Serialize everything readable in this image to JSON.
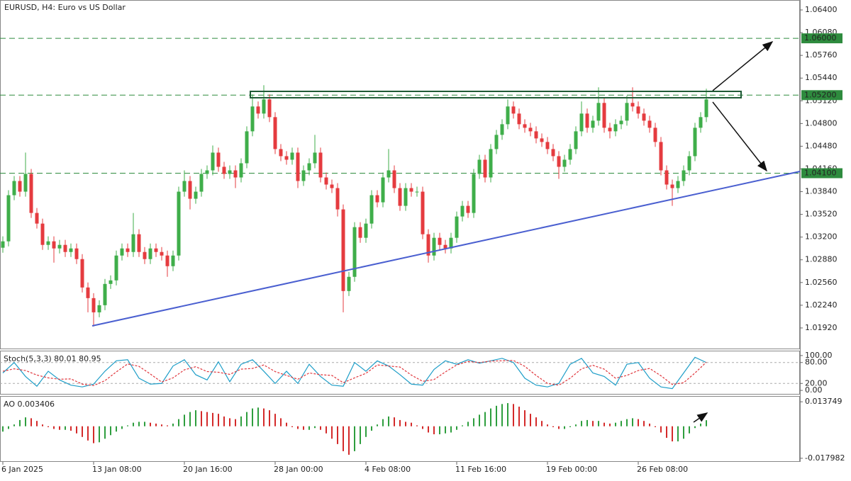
{
  "chart_data": [
    {
      "type": "candlestick",
      "title": "EURUSD, H4:  Euro vs US Dollar",
      "up_color": "#3fae4a",
      "down_color": "#e53b3f",
      "xlim": [
        -0.5,
        140.5
      ],
      "ylim": [
        1.0162,
        1.0654
      ],
      "yticks": [
        {
          "value": 1.064,
          "label": "1.06400"
        },
        {
          "value": 1.0608,
          "label": "1.06080"
        },
        {
          "value": 1.0576,
          "label": "1.05760"
        },
        {
          "value": 1.0544,
          "label": "1.05440"
        },
        {
          "value": 1.0512,
          "label": "1.05120"
        },
        {
          "value": 1.048,
          "label": "1.04800"
        },
        {
          "value": 1.0448,
          "label": "1.04480"
        },
        {
          "value": 1.0416,
          "label": "1.04160"
        },
        {
          "value": 1.0384,
          "label": "1.03840"
        },
        {
          "value": 1.0352,
          "label": "1.03520"
        },
        {
          "value": 1.032,
          "label": "1.03200"
        },
        {
          "value": 1.0288,
          "label": "1.02880"
        },
        {
          "value": 1.0256,
          "label": "1.02560"
        },
        {
          "value": 1.0224,
          "label": "1.02240"
        },
        {
          "value": 1.0192,
          "label": "1.01920"
        }
      ],
      "xticks": [
        {
          "value": 0,
          "label": "6 Jan 2025"
        },
        {
          "value": 16,
          "label": "13 Jan 08:00"
        },
        {
          "value": 32,
          "label": "20 Jan 16:00"
        },
        {
          "value": 48,
          "label": "28 Jan 00:00"
        },
        {
          "value": 64,
          "label": "4 Feb 08:00"
        },
        {
          "value": 80,
          "label": "11 Feb 16:00"
        },
        {
          "value": 96,
          "label": "19 Feb 00:00"
        },
        {
          "value": 112,
          "label": "26 Feb 08:00"
        }
      ],
      "levels": [
        {
          "value": 1.06,
          "label": "1.06000"
        },
        {
          "value": 1.052,
          "label": "1.05200"
        },
        {
          "value": 1.041,
          "label": "1.04100"
        }
      ],
      "level_color": "#2e8b3e",
      "open": [
        1.0305,
        1.0314,
        1.0379,
        1.0399,
        1.0384,
        1.0409,
        1.0354,
        1.0339,
        1.0309,
        1.0314,
        1.0304,
        1.0309,
        1.0299,
        1.0304,
        1.0289,
        1.0249,
        1.0234,
        1.0214,
        1.0224,
        1.0254,
        1.0259,
        1.0294,
        1.0304,
        1.0299,
        1.0324,
        1.0299,
        1.0289,
        1.0304,
        1.0299,
        1.0294,
        1.0279,
        1.0294,
        1.0384,
        1.0399,
        1.0374,
        1.0384,
        1.0409,
        1.0414,
        1.0439,
        1.0419,
        1.0409,
        1.0414,
        1.0404,
        1.0424,
        1.0469,
        1.0504,
        1.0494,
        1.0514,
        1.0489,
        1.0444,
        1.0434,
        1.0429,
        1.0439,
        1.0399,
        1.0414,
        1.0424,
        1.0439,
        1.0404,
        1.0394,
        1.0389,
        1.0359,
        1.0244,
        1.0264,
        1.0334,
        1.0319,
        1.0339,
        1.0379,
        1.0369,
        1.0404,
        1.0414,
        1.0389,
        1.0364,
        1.0389,
        1.0384,
        1.0384,
        1.0324,
        1.0294,
        1.0319,
        1.0309,
        1.0304,
        1.0319,
        1.0349,
        1.0364,
        1.0354,
        1.0409,
        1.0429,
        1.0404,
        1.0444,
        1.0464,
        1.0479,
        1.0504,
        1.0494,
        1.0479,
        1.0474,
        1.0469,
        1.0459,
        1.0454,
        1.0444,
        1.0434,
        1.0419,
        1.0429,
        1.0444,
        1.0469,
        1.0494,
        1.0474,
        1.0484,
        1.0509,
        1.0474,
        1.0469,
        1.0479,
        1.0484,
        1.0509,
        1.0504,
        1.0494,
        1.0484,
        1.0474,
        1.0454,
        1.0414,
        1.0394,
        1.0389,
        1.0399,
        1.0414,
        1.0434,
        1.0474,
        1.0489
      ],
      "high": [
        1.0321,
        1.0386,
        1.0406,
        1.0406,
        1.0439,
        1.0416,
        1.0361,
        1.0346,
        1.0321,
        1.0321,
        1.0316,
        1.0316,
        1.0311,
        1.0311,
        1.0296,
        1.0256,
        1.0241,
        1.0231,
        1.0261,
        1.0266,
        1.0301,
        1.0311,
        1.0311,
        1.0354,
        1.0331,
        1.0306,
        1.0311,
        1.0311,
        1.0306,
        1.0301,
        1.0301,
        1.0391,
        1.0414,
        1.0406,
        1.0391,
        1.0416,
        1.0421,
        1.0449,
        1.0446,
        1.0426,
        1.0421,
        1.0421,
        1.0431,
        1.0476,
        1.0521,
        1.0511,
        1.0534,
        1.0521,
        1.0496,
        1.0451,
        1.0441,
        1.0446,
        1.0446,
        1.0421,
        1.0431,
        1.0464,
        1.0446,
        1.0411,
        1.0401,
        1.0396,
        1.0366,
        1.0271,
        1.0341,
        1.0341,
        1.0346,
        1.0386,
        1.0386,
        1.0411,
        1.0444,
        1.0421,
        1.0396,
        1.0396,
        1.0396,
        1.0391,
        1.0391,
        1.0331,
        1.0326,
        1.0326,
        1.0316,
        1.0326,
        1.0356,
        1.0371,
        1.0371,
        1.0416,
        1.0436,
        1.0436,
        1.0451,
        1.0471,
        1.0486,
        1.0514,
        1.0511,
        1.0501,
        1.0486,
        1.0481,
        1.0476,
        1.0466,
        1.0461,
        1.0451,
        1.0441,
        1.0436,
        1.0451,
        1.0476,
        1.0511,
        1.0501,
        1.0491,
        1.0531,
        1.0516,
        1.0481,
        1.0486,
        1.0491,
        1.0519,
        1.0531,
        1.0511,
        1.0501,
        1.0491,
        1.0481,
        1.0461,
        1.0421,
        1.0401,
        1.0406,
        1.0421,
        1.0441,
        1.0481,
        1.0496,
        1.0529
      ],
      "low": [
        1.0298,
        1.0307,
        1.0372,
        1.0377,
        1.0377,
        1.0347,
        1.0332,
        1.0302,
        1.0302,
        1.0284,
        1.0297,
        1.0292,
        1.0292,
        1.0282,
        1.0242,
        1.0214,
        1.0194,
        1.0207,
        1.0217,
        1.0247,
        1.0252,
        1.0287,
        1.0292,
        1.0292,
        1.0292,
        1.0282,
        1.0282,
        1.0292,
        1.0287,
        1.0264,
        1.0272,
        1.0287,
        1.0377,
        1.0359,
        1.0367,
        1.0377,
        1.0402,
        1.0407,
        1.0412,
        1.0402,
        1.0402,
        1.0389,
        1.0397,
        1.0417,
        1.0462,
        1.0487,
        1.0487,
        1.0482,
        1.0437,
        1.0427,
        1.0422,
        1.0422,
        1.0389,
        1.0392,
        1.0407,
        1.0417,
        1.0397,
        1.0387,
        1.0382,
        1.0349,
        1.0214,
        1.0237,
        1.0257,
        1.0312,
        1.0312,
        1.0332,
        1.0362,
        1.0362,
        1.0397,
        1.0382,
        1.0357,
        1.0357,
        1.0377,
        1.0377,
        1.0317,
        1.0284,
        1.0287,
        1.0302,
        1.0297,
        1.0297,
        1.0312,
        1.0342,
        1.0347,
        1.0347,
        1.0402,
        1.0397,
        1.0397,
        1.0437,
        1.0457,
        1.0472,
        1.0487,
        1.0472,
        1.0467,
        1.0462,
        1.0452,
        1.0447,
        1.0437,
        1.0427,
        1.0402,
        1.0412,
        1.0422,
        1.0437,
        1.0462,
        1.0467,
        1.0467,
        1.0477,
        1.0467,
        1.0459,
        1.0462,
        1.0472,
        1.0477,
        1.0497,
        1.0487,
        1.0477,
        1.0467,
        1.0447,
        1.0407,
        1.0387,
        1.0364,
        1.0382,
        1.0392,
        1.0407,
        1.0427,
        1.0467,
        1.0482
      ],
      "close": [
        1.0314,
        1.0379,
        1.0399,
        1.0384,
        1.0409,
        1.0354,
        1.0339,
        1.0309,
        1.0314,
        1.0304,
        1.0309,
        1.0299,
        1.0304,
        1.0289,
        1.0249,
        1.0234,
        1.0214,
        1.0224,
        1.0254,
        1.0259,
        1.0294,
        1.0304,
        1.0299,
        1.0324,
        1.0299,
        1.0289,
        1.0304,
        1.0299,
        1.0294,
        1.0279,
        1.0294,
        1.0384,
        1.0399,
        1.0374,
        1.0384,
        1.0409,
        1.0414,
        1.0439,
        1.0419,
        1.0409,
        1.0414,
        1.0404,
        1.0424,
        1.0469,
        1.0504,
        1.0494,
        1.0514,
        1.0489,
        1.0444,
        1.0434,
        1.0429,
        1.0439,
        1.0399,
        1.0414,
        1.0424,
        1.0439,
        1.0404,
        1.0394,
        1.0389,
        1.0359,
        1.0244,
        1.0264,
        1.0334,
        1.0319,
        1.0339,
        1.0379,
        1.0369,
        1.0404,
        1.0414,
        1.0389,
        1.0364,
        1.0389,
        1.0384,
        1.0384,
        1.0324,
        1.0294,
        1.0319,
        1.0309,
        1.0304,
        1.0319,
        1.0349,
        1.0364,
        1.0354,
        1.0409,
        1.0429,
        1.0404,
        1.0444,
        1.0464,
        1.0479,
        1.0504,
        1.0494,
        1.0479,
        1.0474,
        1.0469,
        1.0459,
        1.0454,
        1.0444,
        1.0434,
        1.0419,
        1.0429,
        1.0444,
        1.0469,
        1.0494,
        1.0474,
        1.0484,
        1.0509,
        1.0474,
        1.0469,
        1.0479,
        1.0484,
        1.0509,
        1.0504,
        1.0494,
        1.0484,
        1.0474,
        1.0454,
        1.0414,
        1.0394,
        1.0389,
        1.0399,
        1.0414,
        1.0434,
        1.0474,
        1.0489,
        1.0514
      ]
    },
    {
      "type": "line",
      "title": "Stoch(5,3,3)",
      "last_values": [
        80.01,
        80.95
      ],
      "xlim": [
        -0.5,
        140.5
      ],
      "ylim": [
        -12,
        112
      ],
      "yticks": [
        {
          "value": 100,
          "label": "100.00"
        },
        {
          "value": 80,
          "label": "80.00"
        },
        {
          "value": 20,
          "label": "20.00"
        },
        {
          "value": 0,
          "label": "0.00"
        }
      ],
      "levels": [
        80,
        20
      ],
      "x": [
        0,
        2,
        4,
        6,
        8,
        10,
        12,
        14,
        16,
        18,
        20,
        22,
        24,
        26,
        28,
        30,
        32,
        34,
        36,
        38,
        40,
        42,
        44,
        46,
        48,
        50,
        52,
        54,
        56,
        58,
        60,
        62,
        64,
        66,
        68,
        70,
        72,
        74,
        76,
        78,
        80,
        82,
        84,
        86,
        88,
        90,
        92,
        94,
        96,
        98,
        100,
        102,
        104,
        106,
        108,
        110,
        112,
        114,
        116,
        118,
        120,
        122,
        124
      ],
      "series": [
        {
          "color": "#1e9ec8",
          "values": [
            50,
            80,
            40,
            12,
            55,
            30,
            15,
            10,
            18,
            55,
            85,
            88,
            35,
            18,
            20,
            70,
            88,
            45,
            30,
            82,
            25,
            75,
            88,
            55,
            20,
            55,
            20,
            75,
            40,
            15,
            12,
            80,
            55,
            85,
            70,
            45,
            18,
            15,
            60,
            85,
            75,
            88,
            78,
            85,
            92,
            80,
            35,
            15,
            10,
            20,
            75,
            92,
            50,
            40,
            15,
            75,
            80,
            35,
            10,
            5,
            50,
            95,
            80.01
          ]
        },
        {
          "color": "#e0353b",
          "dash": true,
          "values": [
            55,
            62,
            57,
            44,
            36,
            32,
            33,
            18,
            14,
            28,
            53,
            76,
            69,
            47,
            24,
            36,
            59,
            68,
            54,
            52,
            46,
            61,
            63,
            73,
            54,
            43,
            32,
            50,
            45,
            43,
            22,
            36,
            49,
            73,
            70,
            67,
            44,
            26,
            31,
            53,
            73,
            83,
            80,
            84,
            85,
            86,
            69,
            43,
            20,
            15,
            35,
            62,
            72,
            61,
            35,
            43,
            57,
            63,
            42,
            17,
            22,
            50,
            80.95
          ]
        }
      ]
    },
    {
      "type": "histogram",
      "title": "AO",
      "last_value": 0.003406,
      "xlim": [
        -0.5,
        140.5
      ],
      "ylim": [
        -0.02,
        0.0166
      ],
      "yticks": [
        0.013749,
        -0.017982
      ],
      "up_color": "#2e9e3e",
      "down_color": "#d42a2a",
      "values": [
        -0.003,
        -0.0015,
        0.001,
        0.0035,
        0.005,
        0.0045,
        0.003,
        0.001,
        -0.0005,
        -0.0015,
        -0.002,
        -0.002,
        -0.0025,
        -0.004,
        -0.006,
        -0.008,
        -0.0095,
        -0.009,
        -0.007,
        -0.005,
        -0.003,
        -0.0015,
        0.0005,
        0.002,
        0.0025,
        0.0025,
        0.002,
        0.0015,
        0.001,
        0.0005,
        0.0015,
        0.004,
        0.0065,
        0.008,
        0.009,
        0.0085,
        0.008,
        0.0075,
        0.007,
        0.0055,
        0.0045,
        0.004,
        0.0055,
        0.008,
        0.01,
        0.0105,
        0.01,
        0.009,
        0.007,
        0.0045,
        0.002,
        -0.0005,
        -0.0015,
        -0.002,
        -0.002,
        -0.001,
        -0.002,
        -0.004,
        -0.007,
        -0.01,
        -0.014,
        -0.016,
        -0.014,
        -0.01,
        -0.006,
        -0.0025,
        0.001,
        0.004,
        0.0055,
        0.005,
        0.0035,
        0.0025,
        0.002,
        0.0005,
        -0.0015,
        -0.0035,
        -0.0045,
        -0.0045,
        -0.004,
        -0.0035,
        -0.002,
        0.0005,
        0.0025,
        0.0045,
        0.0065,
        0.008,
        0.01,
        0.0115,
        0.0125,
        0.013,
        0.0125,
        0.011,
        0.009,
        0.007,
        0.005,
        0.003,
        0.001,
        -0.0005,
        -0.0015,
        -0.0015,
        -0.0005,
        0.001,
        0.003,
        0.0035,
        0.003,
        0.003,
        0.002,
        0.0015,
        0.002,
        0.003,
        0.004,
        0.0045,
        0.004,
        0.003,
        0.0015,
        -0.0005,
        -0.0035,
        -0.0065,
        -0.0085,
        -0.0085,
        -0.007,
        -0.004,
        -0.001,
        0.0015,
        0.003406
      ]
    }
  ]
}
